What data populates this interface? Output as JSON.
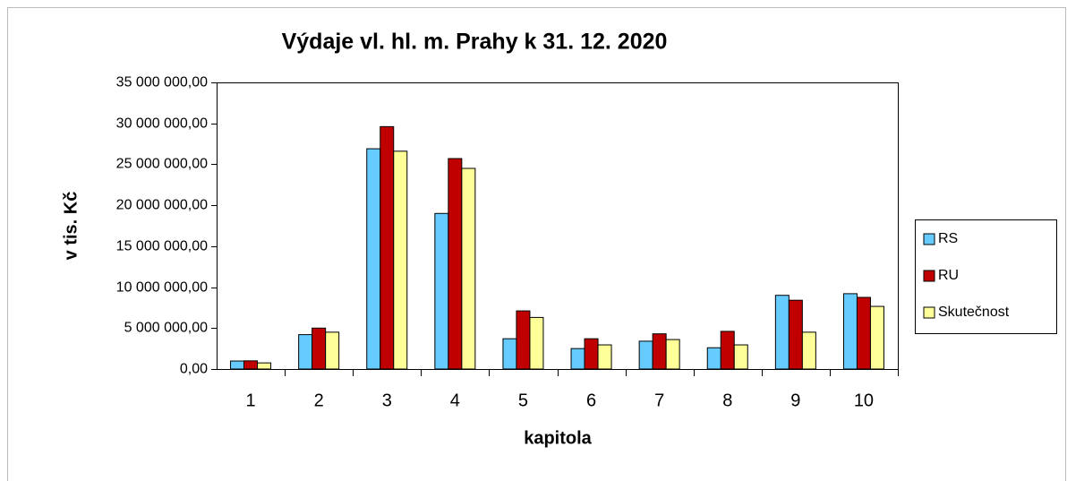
{
  "chart_data": {
    "type": "bar",
    "title": "Výdaje vl. hl. m. Prahy k 31. 12. 2020",
    "x_label": "kapitola",
    "y_label": "v tis. Kč",
    "categories": [
      "1",
      "2",
      "3",
      "4",
      "5",
      "6",
      "7",
      "8",
      "9",
      "10"
    ],
    "series": [
      {
        "name": "RS",
        "color": "#66ccff",
        "values": [
          980000,
          4200000,
          26900000,
          19000000,
          3700000,
          2500000,
          3400000,
          2600000,
          9000000,
          9200000
        ]
      },
      {
        "name": "RU",
        "color": "#c00000",
        "values": [
          1000000,
          5000000,
          29600000,
          25700000,
          7100000,
          3700000,
          4300000,
          4600000,
          8400000,
          8750000
        ]
      },
      {
        "name": "Skutečnost",
        "color": "#ffff99",
        "values": [
          750000,
          4500000,
          26600000,
          24500000,
          6300000,
          2950000,
          3600000,
          2950000,
          4500000,
          7650000
        ]
      }
    ],
    "ylim": [
      0,
      35000000
    ],
    "yticks": [
      {
        "value": 0,
        "label": "0,00"
      },
      {
        "value": 5000000,
        "label": "5 000 000,00"
      },
      {
        "value": 10000000,
        "label": "10 000 000,00"
      },
      {
        "value": 15000000,
        "label": "15 000 000,00"
      },
      {
        "value": 20000000,
        "label": "20 000 000,00"
      },
      {
        "value": 25000000,
        "label": "25 000 000,00"
      },
      {
        "value": 30000000,
        "label": "30 000 000,00"
      },
      {
        "value": 35000000,
        "label": "35 000 000,00"
      }
    ],
    "legend": "right"
  }
}
